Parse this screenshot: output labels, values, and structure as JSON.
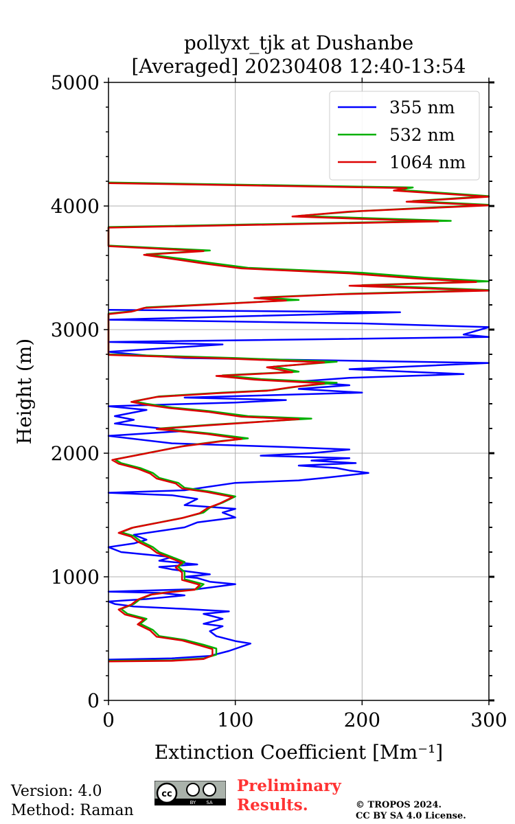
{
  "chart_data": {
    "type": "line",
    "title_line1": "pollyxt_tjk at Dushanbe",
    "title_line2": "[Averaged] 20230408 12:40-13:54",
    "xlabel": "Extinction Coefficient [Mm⁻¹]",
    "ylabel": "Height (m)",
    "xlim": [
      0,
      300
    ],
    "ylim": [
      0,
      5000
    ],
    "xticks": [
      0,
      100,
      200,
      300
    ],
    "yticks": [
      0,
      1000,
      2000,
      3000,
      4000,
      5000
    ],
    "grid": true,
    "legend_position": "top-right",
    "series": [
      {
        "name": "355 nm",
        "color": "#0000ff",
        "points": [
          [
            0,
            330
          ],
          [
            50,
            340
          ],
          [
            80,
            360
          ],
          [
            95,
            400
          ],
          [
            112,
            460
          ],
          [
            100,
            480
          ],
          [
            85,
            520
          ],
          [
            80,
            560
          ],
          [
            90,
            600
          ],
          [
            75,
            620
          ],
          [
            90,
            660
          ],
          [
            75,
            700
          ],
          [
            95,
            720
          ],
          [
            60,
            740
          ],
          [
            20,
            760
          ],
          [
            5,
            780
          ],
          [
            0,
            800
          ],
          [
            30,
            820
          ],
          [
            60,
            850
          ],
          [
            40,
            870
          ],
          [
            0,
            880
          ],
          [
            70,
            900
          ],
          [
            100,
            940
          ],
          [
            80,
            960
          ],
          [
            70,
            990
          ],
          [
            60,
            1000
          ],
          [
            80,
            1020
          ],
          [
            50,
            1060
          ],
          [
            40,
            1080
          ],
          [
            70,
            1100
          ],
          [
            40,
            1130
          ],
          [
            50,
            1160
          ],
          [
            10,
            1200
          ],
          [
            0,
            1240
          ],
          [
            20,
            1270
          ],
          [
            30,
            1300
          ],
          [
            20,
            1340
          ],
          [
            40,
            1370
          ],
          [
            60,
            1400
          ],
          [
            70,
            1440
          ],
          [
            100,
            1480
          ],
          [
            90,
            1520
          ],
          [
            100,
            1550
          ],
          [
            60,
            1580
          ],
          [
            70,
            1630
          ],
          [
            50,
            1660
          ],
          [
            0,
            1680
          ],
          [
            60,
            1700
          ],
          [
            100,
            1760
          ],
          [
            150,
            1780
          ],
          [
            170,
            1800
          ],
          [
            205,
            1840
          ],
          [
            190,
            1860
          ],
          [
            180,
            1880
          ],
          [
            150,
            1900
          ],
          [
            195,
            1920
          ],
          [
            160,
            1940
          ],
          [
            190,
            1960
          ],
          [
            120,
            1980
          ],
          [
            160,
            2000
          ],
          [
            190,
            2030
          ],
          [
            140,
            2050
          ],
          [
            50,
            2080
          ],
          [
            0,
            2140
          ],
          [
            60,
            2180
          ],
          [
            5,
            2240
          ],
          [
            20,
            2270
          ],
          [
            5,
            2300
          ],
          [
            30,
            2350
          ],
          [
            0,
            2380
          ],
          [
            100,
            2410
          ],
          [
            140,
            2430
          ],
          [
            60,
            2450
          ],
          [
            200,
            2490
          ],
          [
            150,
            2520
          ],
          [
            190,
            2550
          ],
          [
            150,
            2580
          ],
          [
            190,
            2610
          ],
          [
            280,
            2640
          ],
          [
            190,
            2680
          ],
          [
            300,
            2730
          ],
          [
            60,
            2770
          ],
          [
            30,
            2790
          ],
          [
            0,
            2820
          ],
          [
            60,
            2860
          ],
          [
            90,
            2880
          ],
          [
            0,
            2900
          ],
          [
            300,
            2940
          ],
          [
            280,
            2960
          ],
          [
            300,
            3020
          ],
          [
            200,
            3050
          ],
          [
            0,
            3080
          ],
          [
            230,
            3140
          ],
          [
            0,
            3160
          ]
        ]
      },
      {
        "name": "532 nm",
        "color": "#00b000",
        "points": [
          [
            0,
            320
          ],
          [
            50,
            325
          ],
          [
            75,
            340
          ],
          [
            85,
            370
          ],
          [
            85,
            420
          ],
          [
            75,
            450
          ],
          [
            60,
            490
          ],
          [
            40,
            520
          ],
          [
            35,
            570
          ],
          [
            25,
            620
          ],
          [
            30,
            660
          ],
          [
            15,
            700
          ],
          [
            10,
            740
          ],
          [
            20,
            780
          ],
          [
            25,
            820
          ],
          [
            35,
            860
          ],
          [
            50,
            880
          ],
          [
            70,
            900
          ],
          [
            75,
            940
          ],
          [
            60,
            980
          ],
          [
            60,
            1040
          ],
          [
            55,
            1080
          ],
          [
            60,
            1120
          ],
          [
            50,
            1160
          ],
          [
            40,
            1200
          ],
          [
            35,
            1240
          ],
          [
            25,
            1290
          ],
          [
            20,
            1330
          ],
          [
            10,
            1360
          ],
          [
            20,
            1400
          ],
          [
            40,
            1440
          ],
          [
            60,
            1480
          ],
          [
            75,
            1520
          ],
          [
            80,
            1560
          ],
          [
            90,
            1600
          ],
          [
            100,
            1650
          ],
          [
            80,
            1690
          ],
          [
            60,
            1720
          ],
          [
            55,
            1760
          ],
          [
            40,
            1800
          ],
          [
            35,
            1840
          ],
          [
            25,
            1880
          ],
          [
            10,
            1920
          ],
          [
            5,
            1950
          ],
          [
            20,
            1980
          ],
          [
            40,
            2020
          ],
          [
            60,
            2060
          ],
          [
            90,
            2100
          ],
          [
            110,
            2120
          ],
          [
            80,
            2160
          ],
          [
            40,
            2200
          ],
          [
            80,
            2230
          ],
          [
            160,
            2280
          ],
          [
            110,
            2300
          ],
          [
            80,
            2340
          ],
          [
            50,
            2370
          ],
          [
            30,
            2400
          ],
          [
            20,
            2420
          ],
          [
            40,
            2460
          ],
          [
            90,
            2490
          ],
          [
            130,
            2510
          ],
          [
            150,
            2540
          ],
          [
            180,
            2570
          ],
          [
            120,
            2600
          ],
          [
            90,
            2630
          ],
          [
            150,
            2660
          ],
          [
            130,
            2700
          ],
          [
            180,
            2740
          ],
          [
            100,
            2770
          ],
          [
            0,
            2800
          ],
          [
            0,
            3130
          ],
          [
            20,
            3150
          ],
          [
            30,
            3180
          ],
          [
            150,
            3240
          ],
          [
            120,
            3260
          ],
          [
            190,
            3290
          ],
          [
            310,
            3320
          ],
          [
            200,
            3360
          ],
          [
            300,
            3390
          ],
          [
            250,
            3420
          ],
          [
            200,
            3460
          ],
          [
            110,
            3500
          ],
          [
            80,
            3540
          ],
          [
            60,
            3570
          ],
          [
            30,
            3610
          ],
          [
            80,
            3640
          ],
          [
            0,
            3680
          ],
          [
            0,
            3830
          ],
          [
            270,
            3880
          ],
          [
            150,
            3920
          ],
          [
            200,
            3960
          ],
          [
            300,
            4010
          ],
          [
            240,
            4040
          ],
          [
            300,
            4080
          ],
          [
            230,
            4130
          ],
          [
            240,
            4150
          ],
          [
            0,
            4190
          ]
        ]
      },
      {
        "name": "1064 nm",
        "color": "#dd0000",
        "points": [
          [
            0,
            315
          ],
          [
            50,
            320
          ],
          [
            75,
            335
          ],
          [
            82,
            365
          ],
          [
            82,
            415
          ],
          [
            72,
            445
          ],
          [
            58,
            485
          ],
          [
            38,
            515
          ],
          [
            33,
            565
          ],
          [
            23,
            615
          ],
          [
            28,
            655
          ],
          [
            13,
            695
          ],
          [
            8,
            735
          ],
          [
            18,
            775
          ],
          [
            23,
            815
          ],
          [
            33,
            855
          ],
          [
            48,
            875
          ],
          [
            68,
            895
          ],
          [
            72,
            935
          ],
          [
            58,
            975
          ],
          [
            58,
            1035
          ],
          [
            53,
            1075
          ],
          [
            58,
            1115
          ],
          [
            48,
            1155
          ],
          [
            38,
            1195
          ],
          [
            33,
            1235
          ],
          [
            23,
            1285
          ],
          [
            18,
            1325
          ],
          [
            8,
            1355
          ],
          [
            18,
            1395
          ],
          [
            38,
            1435
          ],
          [
            58,
            1475
          ],
          [
            72,
            1515
          ],
          [
            78,
            1555
          ],
          [
            88,
            1595
          ],
          [
            98,
            1645
          ],
          [
            78,
            1685
          ],
          [
            58,
            1715
          ],
          [
            53,
            1755
          ],
          [
            38,
            1795
          ],
          [
            33,
            1835
          ],
          [
            23,
            1875
          ],
          [
            8,
            1915
          ],
          [
            3,
            1945
          ],
          [
            18,
            1975
          ],
          [
            38,
            2015
          ],
          [
            58,
            2055
          ],
          [
            88,
            2095
          ],
          [
            105,
            2115
          ],
          [
            78,
            2155
          ],
          [
            38,
            2195
          ],
          [
            78,
            2225
          ],
          [
            150,
            2275
          ],
          [
            105,
            2295
          ],
          [
            78,
            2335
          ],
          [
            48,
            2365
          ],
          [
            28,
            2395
          ],
          [
            18,
            2415
          ],
          [
            38,
            2455
          ],
          [
            85,
            2485
          ],
          [
            125,
            2505
          ],
          [
            145,
            2535
          ],
          [
            170,
            2565
          ],
          [
            115,
            2595
          ],
          [
            85,
            2625
          ],
          [
            145,
            2655
          ],
          [
            125,
            2695
          ],
          [
            170,
            2735
          ],
          [
            95,
            2765
          ],
          [
            0,
            2795
          ],
          [
            0,
            3125
          ],
          [
            18,
            3145
          ],
          [
            28,
            3175
          ],
          [
            140,
            3235
          ],
          [
            115,
            3255
          ],
          [
            180,
            3285
          ],
          [
            300,
            3315
          ],
          [
            190,
            3355
          ],
          [
            290,
            3385
          ],
          [
            240,
            3415
          ],
          [
            190,
            3455
          ],
          [
            105,
            3495
          ],
          [
            75,
            3535
          ],
          [
            55,
            3565
          ],
          [
            28,
            3605
          ],
          [
            75,
            3635
          ],
          [
            0,
            3675
          ],
          [
            0,
            3825
          ],
          [
            260,
            3875
          ],
          [
            145,
            3915
          ],
          [
            190,
            3955
          ],
          [
            300,
            4005
          ],
          [
            235,
            4035
          ],
          [
            300,
            4075
          ],
          [
            225,
            4125
          ],
          [
            235,
            4145
          ],
          [
            0,
            4185
          ]
        ]
      }
    ]
  },
  "footer": {
    "version": "Version: 4.0",
    "method": "Method: Raman",
    "preliminary_line1": "Preliminary",
    "preliminary_line2": "Results.",
    "copyright_line1": "© TROPOS 2024.",
    "copyright_line2": "CC BY SA 4.0 License.",
    "badge": {
      "cc": "cc",
      "by": "BY",
      "sa": "SA"
    }
  }
}
